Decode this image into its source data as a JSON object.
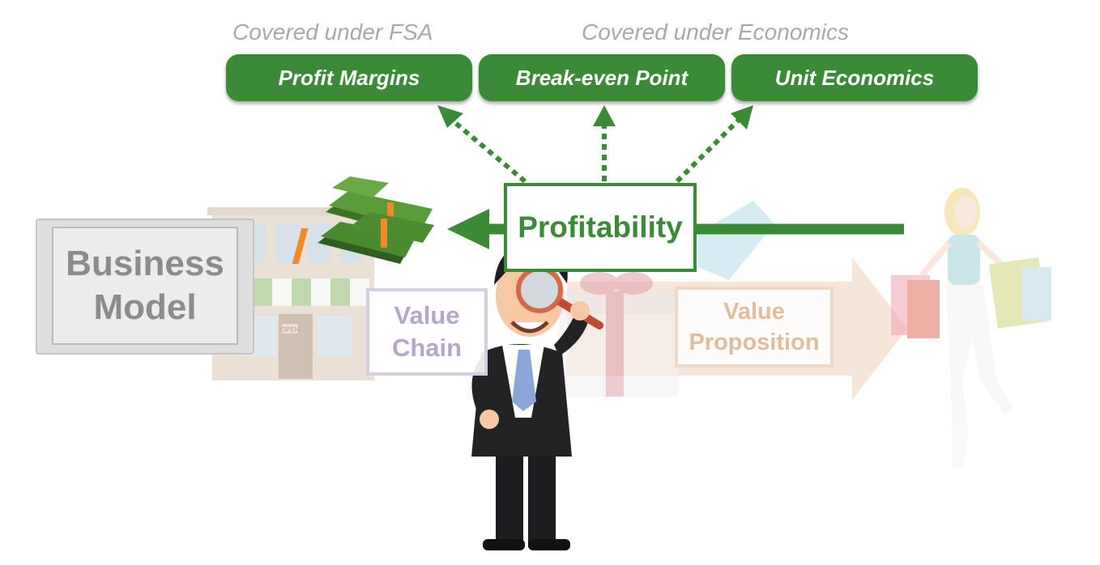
{
  "captions": {
    "fsa": "Covered under FSA",
    "economics": "Covered under Economics"
  },
  "metrics": [
    {
      "label": "Profit Margins"
    },
    {
      "label": "Break-even Point"
    },
    {
      "label": "Unit Economics"
    }
  ],
  "center": {
    "label": "Profitability"
  },
  "business_model": {
    "line1": "Business",
    "line2": "Model"
  },
  "value_chain": {
    "line1": "Value",
    "line2": "Chain"
  },
  "value_proposition": {
    "line1": "Value",
    "line2": "Proposition"
  },
  "store_sign": "OPEN",
  "colors": {
    "green": "#3a8a37",
    "caption_gray": "#a9a9a9",
    "value_chain": "#b8a6c8",
    "value_proposition": "#e0bd9d",
    "business_model": "#8c8c8c"
  },
  "icons": [
    "money-stack-icon",
    "storefront-icon",
    "gift-box-icon",
    "shopper-woman-icon",
    "businessman-magnifier-icon"
  ]
}
